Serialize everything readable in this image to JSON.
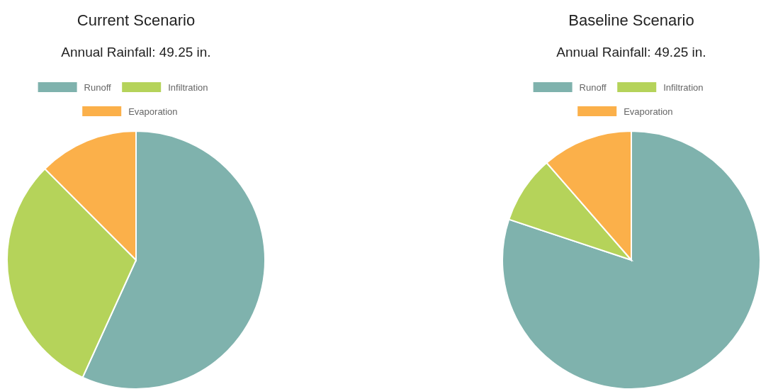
{
  "chart_data": [
    {
      "type": "pie",
      "title": "Current Scenario",
      "subtitle": "Annual Rainfall: 49.25 in.",
      "categories": [
        "Runoff",
        "Infiltration",
        "Evaporation"
      ],
      "values": [
        56.8,
        30.7,
        12.5
      ],
      "colors": [
        "#7fb2ad",
        "#b5d35a",
        "#fbb04a"
      ],
      "legend": "top"
    },
    {
      "type": "pie",
      "title": "Baseline Scenario",
      "subtitle": "Annual Rainfall: 49.25 in.",
      "categories": [
        "Runoff",
        "Infiltration",
        "Evaporation"
      ],
      "values": [
        80.1,
        8.5,
        11.4
      ],
      "colors": [
        "#7fb2ad",
        "#b5d35a",
        "#fbb04a"
      ],
      "legend": "top"
    }
  ]
}
